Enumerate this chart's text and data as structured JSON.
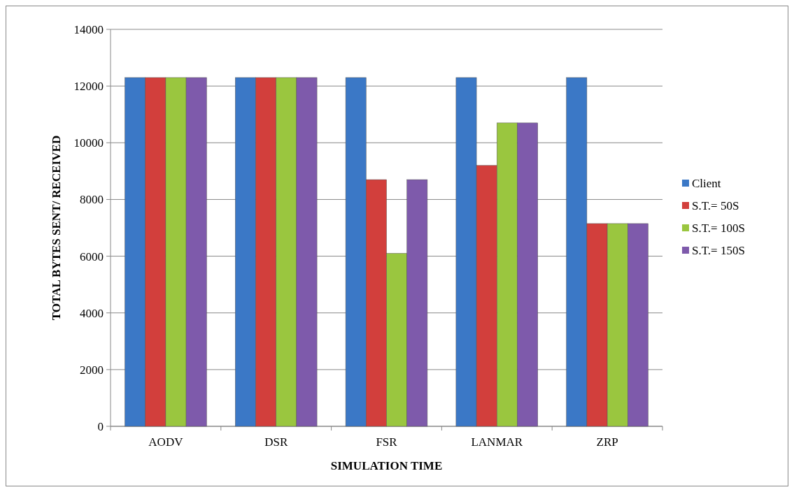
{
  "chart_data": {
    "type": "bar",
    "xlabel": "SIMULATION TIME",
    "ylabel": "TOTAL BYTES SENT/ RECEIVED",
    "categories": [
      "AODV",
      "DSR",
      "FSR",
      "LANMAR",
      "ZRP"
    ],
    "series": [
      {
        "name": "Client",
        "color": "#3b78c6",
        "values": [
          12300,
          12300,
          12300,
          12300,
          12300
        ]
      },
      {
        "name": "S.T.= 50S",
        "color": "#d23f3c",
        "values": [
          12300,
          12300,
          8700,
          9200,
          7150
        ]
      },
      {
        "name": "S.T.= 100S",
        "color": "#9ac63f",
        "values": [
          12300,
          12300,
          6100,
          10700,
          7150
        ]
      },
      {
        "name": "S.T.= 150S",
        "color": "#7e5aab",
        "values": [
          12300,
          12300,
          8700,
          10700,
          7150
        ]
      }
    ],
    "ylim": [
      0,
      14000
    ],
    "yticks": [
      0,
      2000,
      4000,
      6000,
      8000,
      10000,
      12000,
      14000
    ],
    "grid": "y",
    "legend": "right"
  }
}
